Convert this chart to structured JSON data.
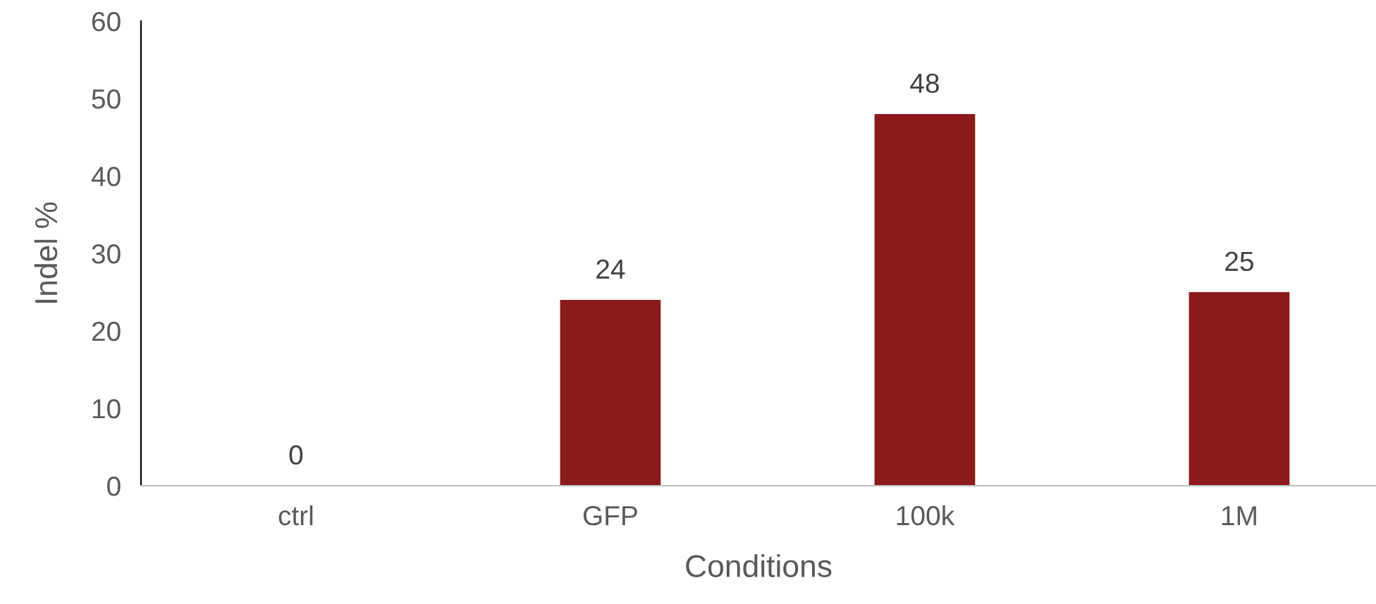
{
  "chart_data": {
    "type": "bar",
    "xlabel": "Conditions",
    "ylabel": "Indel %",
    "categories": [
      "ctrl",
      "GFP",
      "100k",
      "1M"
    ],
    "values": [
      0,
      24,
      48,
      25
    ],
    "color": "#8b1a1a",
    "ylim": [
      0,
      60
    ],
    "yticks": [
      0,
      10,
      20,
      30,
      40,
      50,
      60
    ],
    "grid": false,
    "data_labels": true
  }
}
